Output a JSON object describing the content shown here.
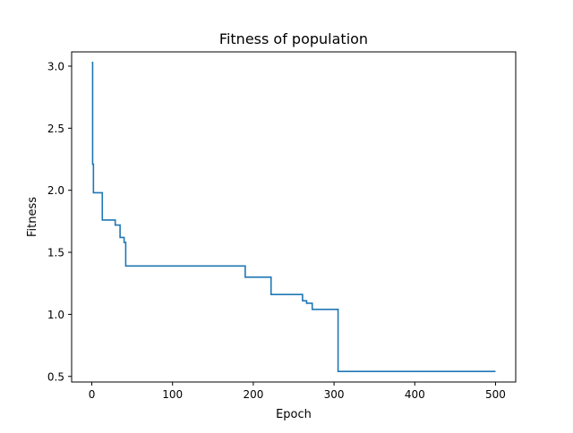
{
  "chart_data": {
    "type": "line",
    "title": "Fitness of population",
    "xlabel": "Epoch",
    "ylabel": "Fitness",
    "xlim": [
      -25,
      525
    ],
    "ylim": [
      0.455,
      3.115
    ],
    "xticks": [
      0,
      100,
      200,
      300,
      400,
      500
    ],
    "yticks": [
      0.5,
      1.0,
      1.5,
      2.0,
      2.5,
      3.0
    ],
    "xtick_labels": [
      "0",
      "100",
      "200",
      "300",
      "400",
      "500"
    ],
    "ytick_labels": [
      "0.5",
      "1.0",
      "1.5",
      "2.0",
      "2.5",
      "3.0"
    ],
    "grid": false,
    "legend": "none",
    "series": [
      {
        "color": "#1f77b4",
        "step": "post",
        "x": [
          0,
          1,
          2,
          13,
          29,
          35,
          40,
          42,
          190,
          222,
          261,
          266,
          273,
          305,
          500
        ],
        "y": [
          3.03,
          2.21,
          1.98,
          1.76,
          1.72,
          1.62,
          1.58,
          1.39,
          1.3,
          1.16,
          1.11,
          1.09,
          1.04,
          0.54,
          0.54
        ]
      }
    ]
  }
}
